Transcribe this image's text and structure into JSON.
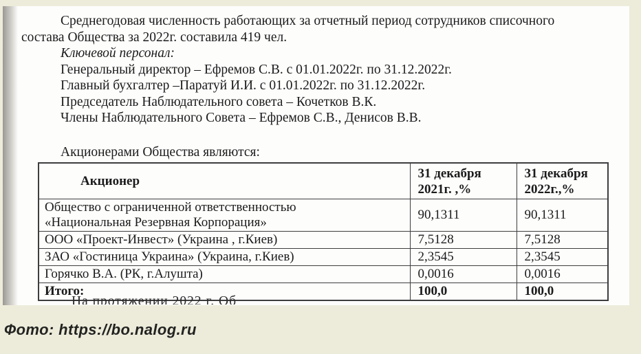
{
  "colors": {
    "background": "#edecdb",
    "paper": "#fdfdfc",
    "ink": "#1b1b1b",
    "table_border": "#3d3d3d",
    "caption_ink": "#232321"
  },
  "body": {
    "l1": "Среднегодовая численность работающих за отчетный период сотрудников списочного",
    "l2": "состава Общества за 2022г. составила 419 чел.",
    "l3": "Ключевой персонал:",
    "l4": "Генеральный директор – Ефремов С.В. с 01.01.2022г. по 31.12.2022г.",
    "l5": "Главный бухгалтер –Паратуй И.И. с 01.01.2022г. по 31.12.2022г.",
    "l6": "Председатель Наблюдательного совета – Кочетков В.К.",
    "l7": "Члены Наблюдательного Совета – Ефремов С.В., Денисов В.В.",
    "l8": "Акционерами Общества являются:"
  },
  "table": {
    "headers": [
      "Акционер",
      "31 декабря 2021г. ,%",
      "31 декабря 2022г.,%"
    ],
    "rows": [
      {
        "name": "Общество с ограниченной ответственностью «Национальная Резервная Корпорация»",
        "c2021": "90,1311",
        "c2022": "90,1311"
      },
      {
        "name": "ООО «Проект-Инвест» (Украина , г.Киев)",
        "c2021": "7,5128",
        "c2022": "7,5128"
      },
      {
        "name": "ЗАО «Гостиница Украина» (Украина, г.Киев)",
        "c2021": "2,3545",
        "c2022": "2,3545"
      },
      {
        "name": "Горячко В.А. (РК, г.Алушта)",
        "c2021": "0,0016",
        "c2022": "0,0016"
      }
    ],
    "total": {
      "label": "Итого:",
      "c2021": "100,0",
      "c2022": "100,0"
    }
  },
  "truncated": {
    "text": "На протяжении 2022 г. Об"
  },
  "caption": {
    "text": "Фото: https://bo.nalog.ru"
  }
}
